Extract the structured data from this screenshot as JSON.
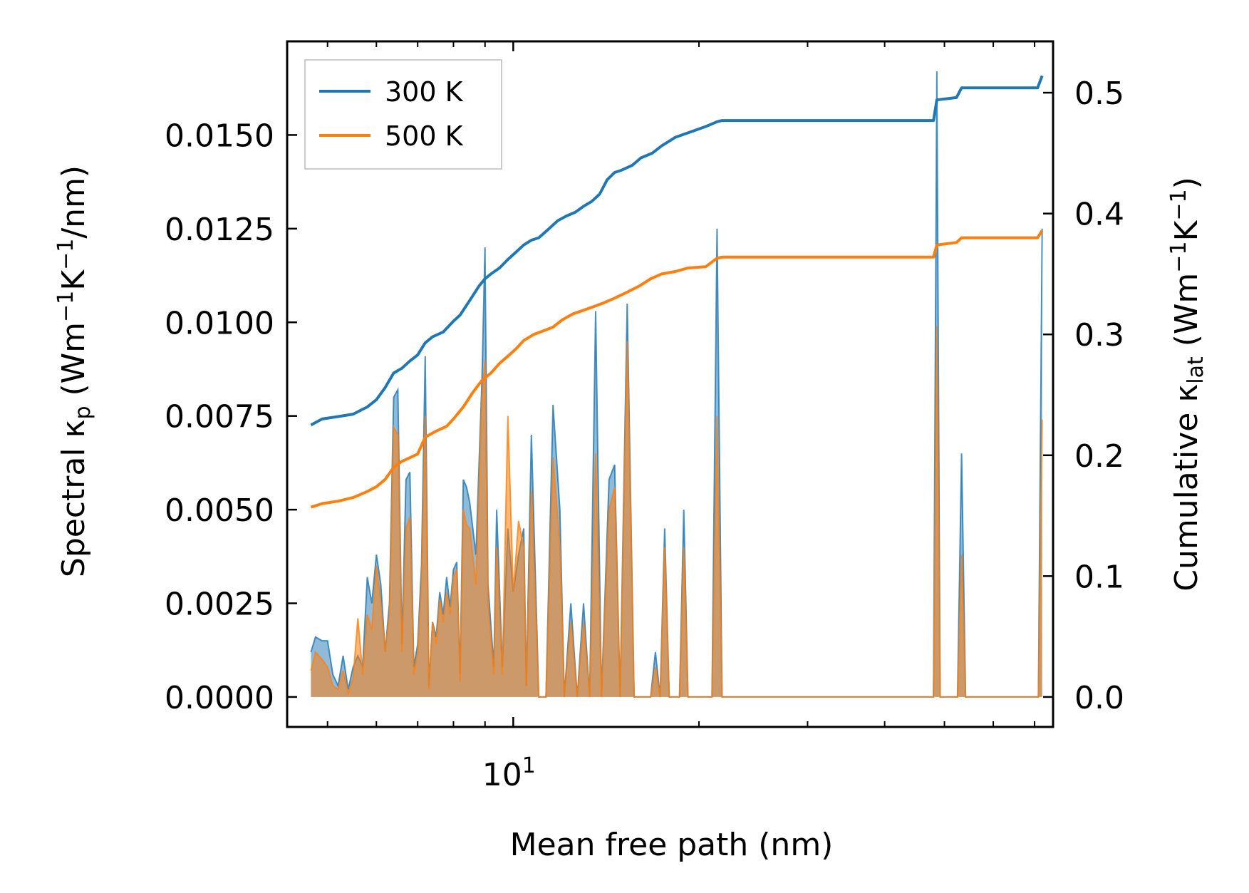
{
  "chart_data": {
    "type": "line",
    "xscale": "log",
    "xlabel": "Mean free path (nm)",
    "ylabel_left": {
      "base": "Spectral κ",
      "sub": "p",
      "unit_open": " (Wm",
      "sup1": "−1",
      "mid": "K",
      "sup2": "−1",
      "unit_close": "/nm)"
    },
    "ylabel_right": {
      "base": "Cumulative κ",
      "sub": "lat",
      "unit_open": " (Wm",
      "sup1": "−1",
      "mid": "K",
      "sup2": "−1",
      "unit_close": ")"
    },
    "xlim": [
      4.3,
      75
    ],
    "ylim_left": [
      -0.0008,
      0.0175
    ],
    "ylim_right": [
      -0.0248,
      0.5425
    ],
    "xticks_major": [
      {
        "value": 10,
        "label_base": "10",
        "label_exp": "1"
      }
    ],
    "xticks_minor": [
      5,
      6,
      7,
      8,
      9,
      20,
      30,
      40,
      50,
      60,
      70
    ],
    "yticks_left": [
      {
        "value": 0.0,
        "label": "0.0000"
      },
      {
        "value": 0.0025,
        "label": "0.0025"
      },
      {
        "value": 0.005,
        "label": "0.0050"
      },
      {
        "value": 0.0075,
        "label": "0.0075"
      },
      {
        "value": 0.01,
        "label": "0.0100"
      },
      {
        "value": 0.0125,
        "label": "0.0125"
      },
      {
        "value": 0.015,
        "label": "0.0150"
      }
    ],
    "yticks_right": [
      {
        "value": 0.0,
        "label": "0.0"
      },
      {
        "value": 0.1,
        "label": "0.1"
      },
      {
        "value": 0.2,
        "label": "0.2"
      },
      {
        "value": 0.3,
        "label": "0.3"
      },
      {
        "value": 0.4,
        "label": "0.4"
      },
      {
        "value": 0.5,
        "label": "0.5"
      }
    ],
    "legend": {
      "position": "top-left",
      "entries": [
        "300 K",
        "500 K"
      ]
    },
    "series": [
      {
        "name": "300 K",
        "color": "#1f77b4",
        "spectral": [
          [
            4.7,
            0.0012
          ],
          [
            4.78,
            0.0016
          ],
          [
            4.9,
            0.0015
          ],
          [
            5.0,
            0.0015
          ],
          [
            5.1,
            0.0006
          ],
          [
            5.2,
            0.0003
          ],
          [
            5.3,
            0.0011
          ],
          [
            5.4,
            0.0002
          ],
          [
            5.5,
            0.0008
          ],
          [
            5.6,
            0.0011
          ],
          [
            5.7,
            0.0008
          ],
          [
            5.8,
            0.0032
          ],
          [
            5.9,
            0.0025
          ],
          [
            6.0,
            0.0038
          ],
          [
            6.1,
            0.003
          ],
          [
            6.2,
            0.0012
          ],
          [
            6.3,
            0.0025
          ],
          [
            6.4,
            0.008
          ],
          [
            6.5,
            0.0082
          ],
          [
            6.6,
            0.0014
          ],
          [
            6.7,
            0.0058
          ],
          [
            6.8,
            0.006
          ],
          [
            6.9,
            0.0008
          ],
          [
            7.0,
            0.0014
          ],
          [
            7.1,
            0.0035
          ],
          [
            7.2,
            0.0091
          ],
          [
            7.3,
            0.0003
          ],
          [
            7.4,
            0.002
          ],
          [
            7.5,
            0.0016
          ],
          [
            7.6,
            0.0028
          ],
          [
            7.7,
            0.0022
          ],
          [
            7.8,
            0.0032
          ],
          [
            7.9,
            0.0024
          ],
          [
            8.0,
            0.0034
          ],
          [
            8.1,
            0.0036
          ],
          [
            8.2,
            0.0006
          ],
          [
            8.3,
            0.0058
          ],
          [
            8.4,
            0.0056
          ],
          [
            8.5,
            0.0052
          ],
          [
            8.7,
            0.0038
          ],
          [
            8.9,
            0.0085
          ],
          [
            9.0,
            0.012
          ],
          [
            9.1,
            0.003
          ],
          [
            9.3,
            0.0008
          ],
          [
            9.4,
            0.005
          ],
          [
            9.6,
            0.0008
          ],
          [
            9.8,
            0.0045
          ],
          [
            10.0,
            0.0028
          ],
          [
            10.2,
            0.0038
          ],
          [
            10.4,
            0.0045
          ],
          [
            10.5,
            0.0003
          ],
          [
            10.7,
            0.007
          ],
          [
            11.0,
            0.0
          ],
          [
            11.3,
            0.0
          ],
          [
            11.6,
            0.0078
          ],
          [
            11.9,
            0.005
          ],
          [
            12.1,
            0.0
          ],
          [
            12.4,
            0.0025
          ],
          [
            12.7,
            0.0
          ],
          [
            13.0,
            0.0025
          ],
          [
            13.3,
            0.0
          ],
          [
            13.6,
            0.0103
          ],
          [
            13.9,
            0.0
          ],
          [
            14.3,
            0.0058
          ],
          [
            14.6,
            0.0062
          ],
          [
            14.9,
            0.0
          ],
          [
            15.3,
            0.0105
          ],
          [
            15.7,
            0.0
          ],
          [
            16.7,
            0.0
          ],
          [
            17.0,
            0.0012
          ],
          [
            17.3,
            0.0
          ],
          [
            17.6,
            0.0045
          ],
          [
            17.9,
            0.0
          ],
          [
            18.6,
            0.0
          ],
          [
            18.9,
            0.005
          ],
          [
            19.2,
            0.0
          ],
          [
            21.0,
            0.0
          ],
          [
            21.4,
            0.0125
          ],
          [
            21.8,
            0.0
          ],
          [
            48.0,
            0.0
          ],
          [
            48.6,
            0.0167
          ],
          [
            49.2,
            0.0
          ],
          [
            52.5,
            0.0
          ],
          [
            53.3,
            0.0065
          ],
          [
            54.1,
            0.0
          ],
          [
            71.0,
            0.0
          ],
          [
            72.0,
            0.0125
          ]
        ],
        "cumulative": [
          [
            4.7,
            0.225
          ],
          [
            4.9,
            0.23
          ],
          [
            5.2,
            0.232
          ],
          [
            5.5,
            0.234
          ],
          [
            5.8,
            0.24
          ],
          [
            6.0,
            0.246
          ],
          [
            6.2,
            0.256
          ],
          [
            6.4,
            0.268
          ],
          [
            6.6,
            0.272
          ],
          [
            6.8,
            0.278
          ],
          [
            7.0,
            0.283
          ],
          [
            7.2,
            0.293
          ],
          [
            7.4,
            0.298
          ],
          [
            7.7,
            0.302
          ],
          [
            8.0,
            0.311
          ],
          [
            8.2,
            0.316
          ],
          [
            8.5,
            0.328
          ],
          [
            8.8,
            0.34
          ],
          [
            9.0,
            0.346
          ],
          [
            9.2,
            0.35
          ],
          [
            9.5,
            0.355
          ],
          [
            9.8,
            0.362
          ],
          [
            10.1,
            0.368
          ],
          [
            10.4,
            0.374
          ],
          [
            10.7,
            0.378
          ],
          [
            11.0,
            0.38
          ],
          [
            11.4,
            0.387
          ],
          [
            11.8,
            0.394
          ],
          [
            12.2,
            0.398
          ],
          [
            12.6,
            0.401
          ],
          [
            13.0,
            0.406
          ],
          [
            13.4,
            0.41
          ],
          [
            13.8,
            0.416
          ],
          [
            14.2,
            0.428
          ],
          [
            14.6,
            0.434
          ],
          [
            15.0,
            0.436
          ],
          [
            15.6,
            0.44
          ],
          [
            16.1,
            0.446
          ],
          [
            16.8,
            0.45
          ],
          [
            17.4,
            0.456
          ],
          [
            18.3,
            0.463
          ],
          [
            19.0,
            0.466
          ],
          [
            20.5,
            0.472
          ],
          [
            21.4,
            0.476
          ],
          [
            21.8,
            0.477
          ],
          [
            48.0,
            0.477
          ],
          [
            48.6,
            0.494
          ],
          [
            52.3,
            0.496
          ],
          [
            53.3,
            0.504
          ],
          [
            70.8,
            0.504
          ],
          [
            72.0,
            0.514
          ]
        ]
      },
      {
        "name": "500 K",
        "color": "#ff7f0e",
        "spectral": [
          [
            4.7,
            0.0007
          ],
          [
            4.78,
            0.0012
          ],
          [
            4.9,
            0.001
          ],
          [
            5.0,
            0.0008
          ],
          [
            5.1,
            0.0003
          ],
          [
            5.2,
            0.0002
          ],
          [
            5.3,
            0.0007
          ],
          [
            5.4,
            0.0001
          ],
          [
            5.5,
            0.0005
          ],
          [
            5.6,
            0.0021
          ],
          [
            5.7,
            0.0006
          ],
          [
            5.8,
            0.0022
          ],
          [
            5.9,
            0.0018
          ],
          [
            6.0,
            0.0035
          ],
          [
            6.1,
            0.0025
          ],
          [
            6.2,
            0.0012
          ],
          [
            6.3,
            0.0022
          ],
          [
            6.4,
            0.0072
          ],
          [
            6.5,
            0.007
          ],
          [
            6.6,
            0.0012
          ],
          [
            6.7,
            0.0045
          ],
          [
            6.8,
            0.0048
          ],
          [
            6.9,
            0.0006
          ],
          [
            7.0,
            0.0012
          ],
          [
            7.1,
            0.003
          ],
          [
            7.2,
            0.0075
          ],
          [
            7.3,
            0.0002
          ],
          [
            7.4,
            0.002
          ],
          [
            7.5,
            0.0014
          ],
          [
            7.6,
            0.0026
          ],
          [
            7.7,
            0.002
          ],
          [
            7.8,
            0.0028
          ],
          [
            7.9,
            0.0022
          ],
          [
            8.0,
            0.0032
          ],
          [
            8.1,
            0.0034
          ],
          [
            8.2,
            0.0004
          ],
          [
            8.3,
            0.005
          ],
          [
            8.4,
            0.0046
          ],
          [
            8.5,
            0.0045
          ],
          [
            8.7,
            0.003
          ],
          [
            8.9,
            0.008
          ],
          [
            9.0,
            0.009
          ],
          [
            9.1,
            0.0025
          ],
          [
            9.3,
            0.0006
          ],
          [
            9.4,
            0.004
          ],
          [
            9.6,
            0.0006
          ],
          [
            9.8,
            0.0075
          ],
          [
            10.0,
            0.0028
          ],
          [
            10.2,
            0.0047
          ],
          [
            10.4,
            0.004
          ],
          [
            10.5,
            0.0003
          ],
          [
            10.7,
            0.0055
          ],
          [
            11.0,
            0.0
          ],
          [
            11.3,
            0.0
          ],
          [
            11.6,
            0.0064
          ],
          [
            11.9,
            0.004
          ],
          [
            12.1,
            0.0
          ],
          [
            12.4,
            0.002
          ],
          [
            12.7,
            0.0
          ],
          [
            13.0,
            0.002
          ],
          [
            13.3,
            0.0
          ],
          [
            13.6,
            0.0065
          ],
          [
            13.9,
            0.0
          ],
          [
            14.3,
            0.005
          ],
          [
            14.6,
            0.0056
          ],
          [
            14.9,
            0.0
          ],
          [
            15.3,
            0.0095
          ],
          [
            15.7,
            0.0
          ],
          [
            16.7,
            0.0
          ],
          [
            17.0,
            0.0008
          ],
          [
            17.3,
            0.0
          ],
          [
            17.6,
            0.004
          ],
          [
            17.9,
            0.0
          ],
          [
            18.6,
            0.0
          ],
          [
            18.9,
            0.004
          ],
          [
            19.2,
            0.0
          ],
          [
            21.0,
            0.0
          ],
          [
            21.4,
            0.0075
          ],
          [
            21.8,
            0.0
          ],
          [
            48.0,
            0.0
          ],
          [
            48.6,
            0.0099
          ],
          [
            49.2,
            0.0
          ],
          [
            52.5,
            0.0
          ],
          [
            53.3,
            0.0038
          ],
          [
            54.1,
            0.0
          ],
          [
            71.0,
            0.0
          ],
          [
            72.0,
            0.0074
          ]
        ],
        "cumulative": [
          [
            4.7,
            0.157
          ],
          [
            4.9,
            0.16
          ],
          [
            5.2,
            0.162
          ],
          [
            5.5,
            0.165
          ],
          [
            5.8,
            0.17
          ],
          [
            6.0,
            0.174
          ],
          [
            6.2,
            0.18
          ],
          [
            6.4,
            0.19
          ],
          [
            6.6,
            0.195
          ],
          [
            6.8,
            0.198
          ],
          [
            7.0,
            0.201
          ],
          [
            7.2,
            0.215
          ],
          [
            7.5,
            0.22
          ],
          [
            7.8,
            0.224
          ],
          [
            8.0,
            0.23
          ],
          [
            8.3,
            0.24
          ],
          [
            8.6,
            0.252
          ],
          [
            8.9,
            0.262
          ],
          [
            9.2,
            0.268
          ],
          [
            9.5,
            0.276
          ],
          [
            9.8,
            0.282
          ],
          [
            10.1,
            0.288
          ],
          [
            10.4,
            0.295
          ],
          [
            10.8,
            0.3
          ],
          [
            11.2,
            0.303
          ],
          [
            11.6,
            0.306
          ],
          [
            12.0,
            0.312
          ],
          [
            12.5,
            0.317
          ],
          [
            13.0,
            0.32
          ],
          [
            13.5,
            0.323
          ],
          [
            14.0,
            0.326
          ],
          [
            14.6,
            0.33
          ],
          [
            15.3,
            0.335
          ],
          [
            16.0,
            0.34
          ],
          [
            16.7,
            0.346
          ],
          [
            17.4,
            0.35
          ],
          [
            18.3,
            0.352
          ],
          [
            19.2,
            0.355
          ],
          [
            20.5,
            0.356
          ],
          [
            21.4,
            0.363
          ],
          [
            21.8,
            0.364
          ],
          [
            48.0,
            0.364
          ],
          [
            48.6,
            0.374
          ],
          [
            52.3,
            0.376
          ],
          [
            53.3,
            0.38
          ],
          [
            70.8,
            0.38
          ],
          [
            72.0,
            0.386
          ]
        ]
      }
    ]
  }
}
